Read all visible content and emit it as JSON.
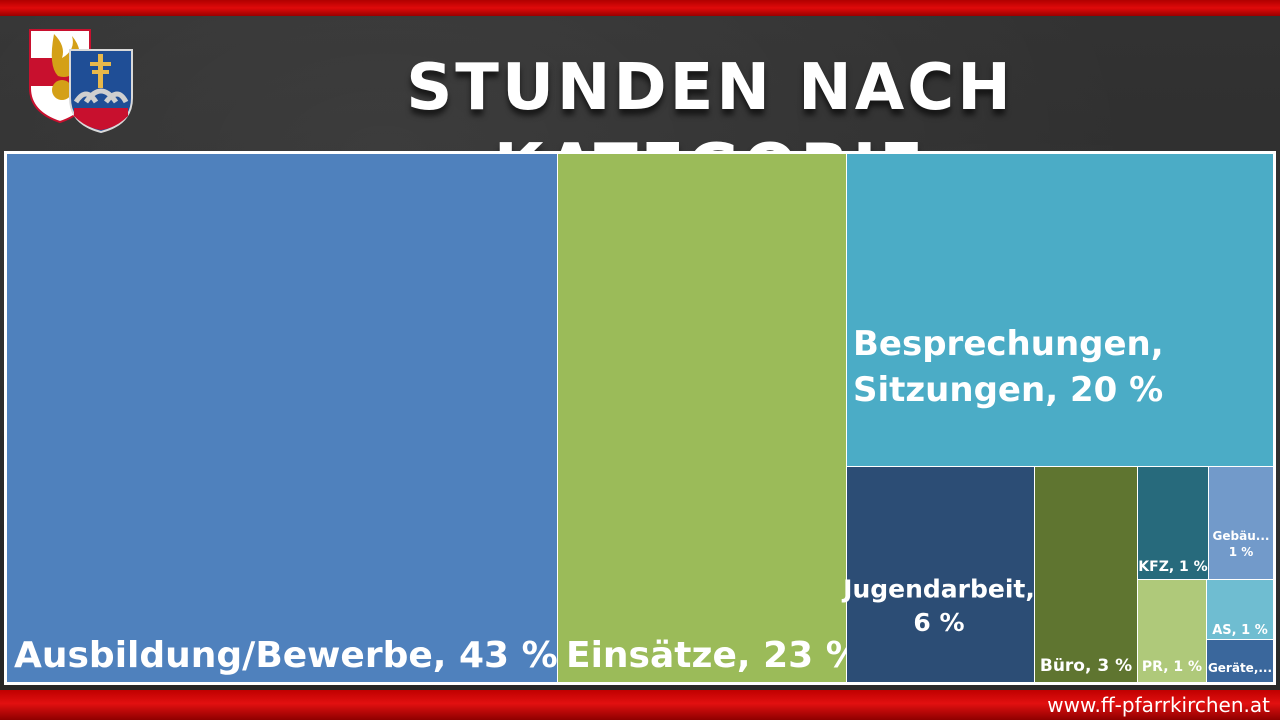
{
  "header": {
    "title": "STUNDEN NACH KATEGORIE"
  },
  "footer": {
    "url": "www.ff-pfarrkirchen.at"
  },
  "logos": {
    "left": "feuerwehr-emblem",
    "right": "municipal-coat-of-arms"
  },
  "chart_data": {
    "type": "treemap",
    "title": "STUNDEN NACH KATEGORIE",
    "unit": "%",
    "items": [
      {
        "name": "Ausbildung/Bewerbe",
        "value": 43,
        "label": "Ausbildung/Bewerbe, 43 %",
        "color": "#4f81bd"
      },
      {
        "name": "Einsätze",
        "value": 23,
        "label": "Einsätze, 23 %",
        "color": "#9bbb59"
      },
      {
        "name": "Besprechungen, Sitzungen",
        "value": 20,
        "label": "Besprechungen,\nSitzungen, 20 %",
        "color": "#4bacc6"
      },
      {
        "name": "Jugendarbeit",
        "value": 6,
        "label": "Jugendarbeit,\n6 %",
        "color": "#2c4d75"
      },
      {
        "name": "Büro",
        "value": 3,
        "label": "Büro, 3 %",
        "color": "#5f7530"
      },
      {
        "name": "KFZ",
        "value": 1,
        "label": "KFZ, 1 %",
        "color": "#276a7c"
      },
      {
        "name": "Gebäu...",
        "value": 1,
        "label": "Gebäu...\n1 %",
        "color": "#729aca"
      },
      {
        "name": "PR",
        "value": 1,
        "label": "PR, 1 %",
        "color": "#afc97a"
      },
      {
        "name": "AS",
        "value": 1,
        "label": "AS, 1 %",
        "color": "#6fbdd1"
      },
      {
        "name": "Geräte,...",
        "value": 1,
        "label": "Geräte,...",
        "color": "#3a679c"
      }
    ]
  }
}
